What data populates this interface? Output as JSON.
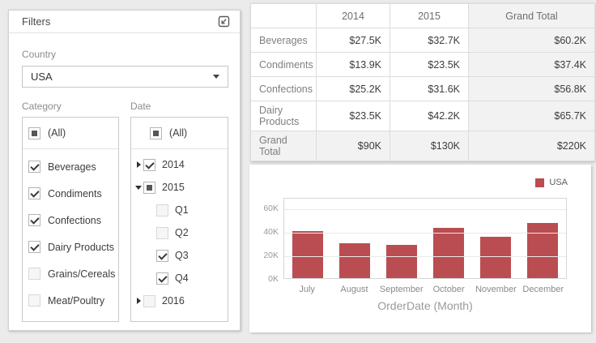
{
  "filters_panel": {
    "title": "Filters",
    "export_icon": "export-icon",
    "country": {
      "label": "Country",
      "value": "USA"
    },
    "category": {
      "label": "Category",
      "all_item": {
        "label": "(All)",
        "state": "indeterminate"
      },
      "items": [
        {
          "label": "Beverages",
          "checked": true
        },
        {
          "label": "Condiments",
          "checked": true
        },
        {
          "label": "Confections",
          "checked": true
        },
        {
          "label": "Dairy Products",
          "checked": true
        },
        {
          "label": "Grains/Cereals",
          "checked": false
        },
        {
          "label": "Meat/Poultry",
          "checked": false
        }
      ]
    },
    "date": {
      "label": "Date",
      "all_item": {
        "label": "(All)",
        "state": "indeterminate"
      },
      "items": [
        {
          "label": "2014",
          "state": "checked",
          "expand": "collapsed",
          "level": 0
        },
        {
          "label": "2015",
          "state": "indeterminate",
          "expand": "expanded",
          "level": 0
        },
        {
          "label": "Q1",
          "state": "unchecked",
          "expand": "none",
          "level": 1
        },
        {
          "label": "Q2",
          "state": "unchecked",
          "expand": "none",
          "level": 1
        },
        {
          "label": "Q3",
          "state": "checked",
          "expand": "none",
          "level": 1
        },
        {
          "label": "Q4",
          "state": "checked",
          "expand": "none",
          "level": 1
        },
        {
          "label": "2016",
          "state": "unchecked",
          "expand": "collapsed",
          "level": 0
        }
      ]
    }
  },
  "pivot_table": {
    "columns": [
      "",
      "2014",
      "2015",
      "Grand Total"
    ],
    "rows": [
      {
        "label": "Beverages",
        "values": [
          "$27.5K",
          "$32.7K",
          "$60.2K"
        ],
        "is_total": false
      },
      {
        "label": "Condiments",
        "values": [
          "$13.9K",
          "$23.5K",
          "$37.4K"
        ],
        "is_total": false
      },
      {
        "label": "Confections",
        "values": [
          "$25.2K",
          "$31.6K",
          "$56.8K"
        ],
        "is_total": false
      },
      {
        "label": "Dairy Products",
        "values": [
          "$23.5K",
          "$42.2K",
          "$65.7K"
        ],
        "is_total": false
      },
      {
        "label": "Grand Total",
        "values": [
          "$90K",
          "$130K",
          "$220K"
        ],
        "is_total": true
      }
    ]
  },
  "chart_data": {
    "type": "bar",
    "categories": [
      "July",
      "August",
      "September",
      "October",
      "November",
      "December"
    ],
    "series": [
      {
        "name": "USA",
        "values": [
          40000,
          30000,
          28000,
          43000,
          35000,
          47000
        ]
      }
    ],
    "title": "",
    "xlabel": "OrderDate (Month)",
    "ylabel": "",
    "ylim": [
      0,
      69000
    ],
    "ytick_values": [
      0,
      20000,
      40000,
      60000
    ],
    "ytick_labels": [
      "0K",
      "20K",
      "40K",
      "60K"
    ],
    "grid": true,
    "legend_position": "top-right",
    "bar_color": "#ba4d51",
    "legend_label": "USA"
  }
}
